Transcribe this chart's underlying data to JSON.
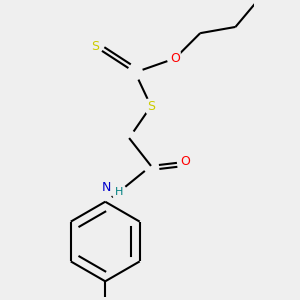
{
  "background_color": "#efefef",
  "atom_colors": {
    "S": "#cccc00",
    "O": "#ff0000",
    "N": "#0000cc",
    "H": "#008080",
    "C": "#000000"
  },
  "bond_color": "#000000",
  "bond_width": 1.5,
  "figsize": [
    3.0,
    3.0
  ],
  "dpi": 100
}
